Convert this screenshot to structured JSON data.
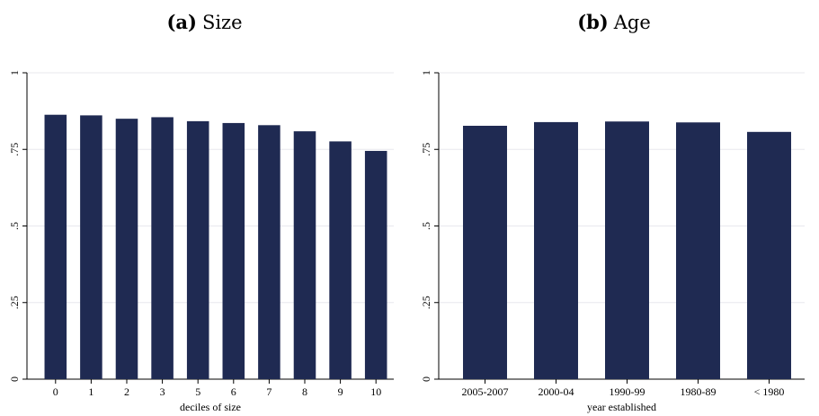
{
  "chart_data": [
    {
      "type": "bar",
      "caption_tag": "(a)",
      "caption_text": "Size",
      "categories": [
        "0",
        "1",
        "2",
        "3",
        "5",
        "6",
        "7",
        "8",
        "9",
        "10"
      ],
      "values": [
        0.863,
        0.861,
        0.85,
        0.855,
        0.842,
        0.836,
        0.829,
        0.809,
        0.776,
        0.745
      ],
      "xlabel": "deciles of size",
      "ylabel": "",
      "ylim": [
        0,
        1
      ],
      "yticks": [
        0,
        0.25,
        0.5,
        0.75,
        1
      ],
      "ytick_labels": [
        "0",
        ".25",
        ".5",
        ".75",
        "1"
      ],
      "grid": true,
      "bar_color": "#1f2a52"
    },
    {
      "type": "bar",
      "caption_tag": "(b)",
      "caption_text": "Age",
      "categories": [
        "2005-2007",
        "2000-04",
        "1990-99",
        "1980-89",
        "< 1980"
      ],
      "values": [
        0.827,
        0.839,
        0.841,
        0.838,
        0.807
      ],
      "xlabel": "year established",
      "ylabel": "",
      "ylim": [
        0,
        1
      ],
      "yticks": [
        0,
        0.25,
        0.5,
        0.75,
        1
      ],
      "ytick_labels": [
        "0",
        ".25",
        ".5",
        ".75",
        "1"
      ],
      "grid": true,
      "bar_color": "#1f2a52"
    }
  ]
}
